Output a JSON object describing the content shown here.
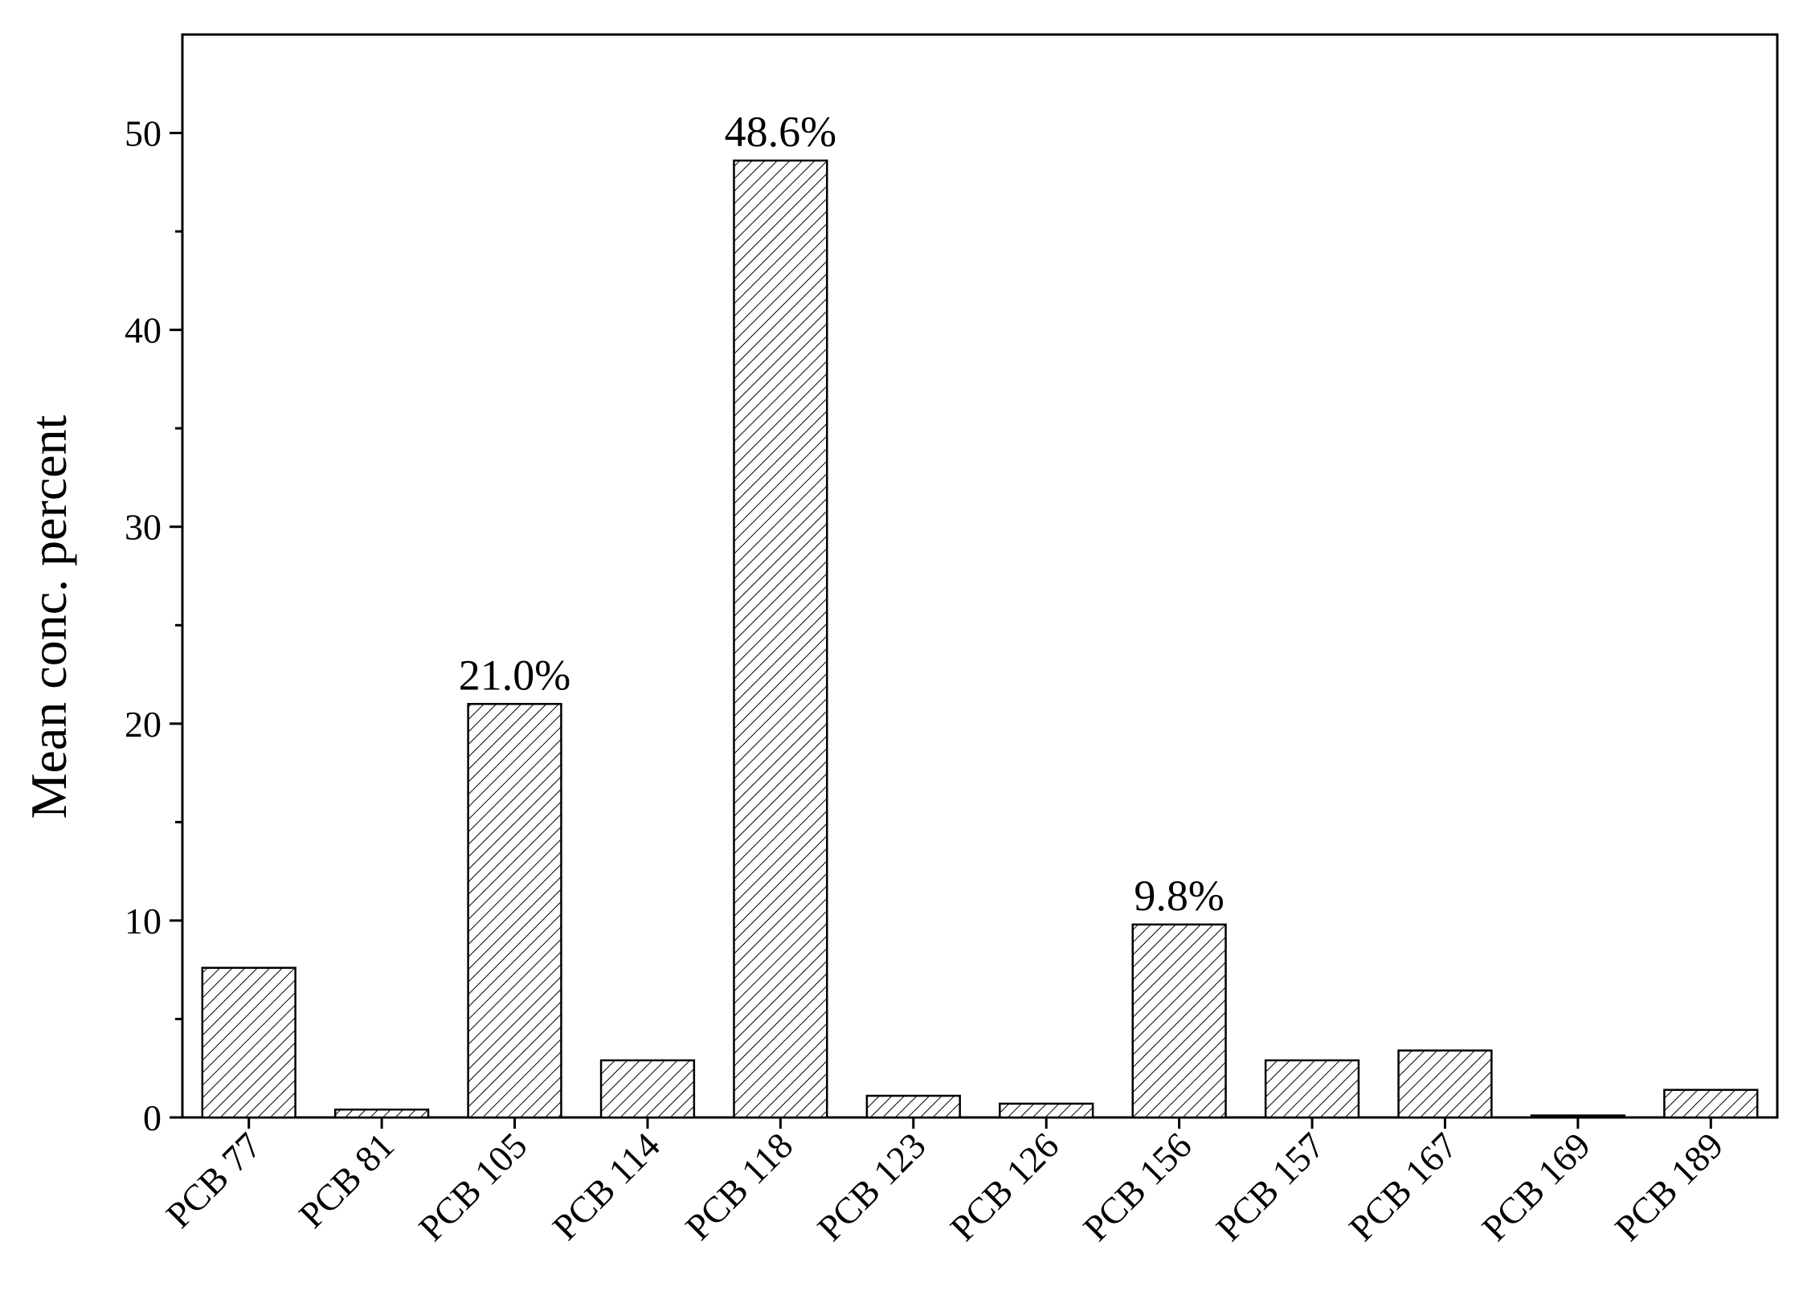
{
  "chart_data": {
    "type": "bar",
    "y_label": "Mean conc. percent",
    "categories": [
      "PCB 77",
      "PCB 81",
      "PCB 105",
      "PCB 114",
      "PCB 118",
      "PCB 123",
      "PCB 126",
      "PCB 156",
      "PCB 157",
      "PCB 167",
      "PCB 169",
      "PCB 189"
    ],
    "values": [
      7.6,
      0.4,
      21.0,
      2.9,
      48.6,
      1.1,
      0.7,
      9.8,
      2.9,
      3.4,
      0.1,
      1.4
    ],
    "value_labels": [
      null,
      null,
      "21.0%",
      null,
      "48.6%",
      null,
      null,
      "9.8%",
      null,
      null,
      null,
      null
    ],
    "color": "#000000",
    "ylim": [
      0,
      55
    ],
    "yticks": [
      0,
      10,
      20,
      30,
      40,
      50
    ]
  }
}
